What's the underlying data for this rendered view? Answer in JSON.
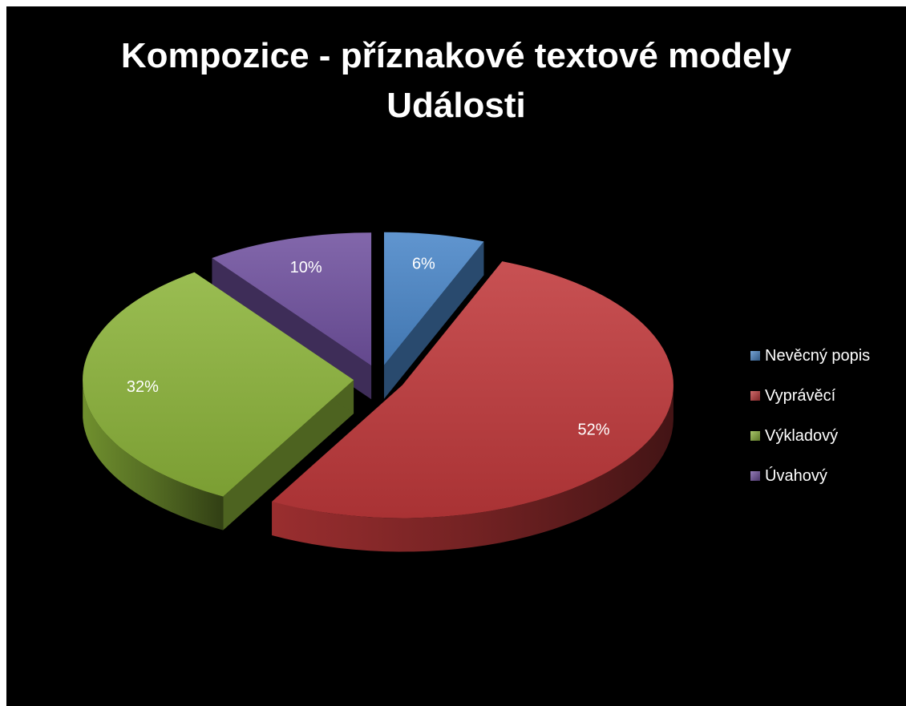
{
  "chart_data": {
    "type": "pie",
    "title_lines": [
      "Kompozice - příznakové textové modely",
      "Události"
    ],
    "slices": [
      {
        "label": "Nevěcný popis",
        "value": 6,
        "display": "6%",
        "color": "#4a86c8"
      },
      {
        "label": "Vyprávěcí",
        "value": 52,
        "display": "52%",
        "color": "#c0393b"
      },
      {
        "label": "Výkladový",
        "value": 32,
        "display": "32%",
        "color": "#8cb43a"
      },
      {
        "label": "Úvahový",
        "value": 10,
        "display": "10%",
        "color": "#7152a0"
      }
    ],
    "legend_position": "right",
    "exploded": true,
    "style": "3d"
  }
}
